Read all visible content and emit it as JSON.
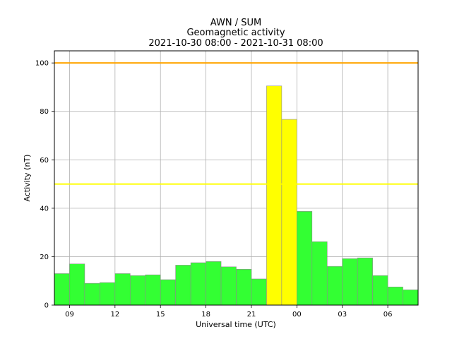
{
  "chart_data": {
    "type": "bar",
    "title_lines": [
      "AWN / SUM",
      "Geomagnetic activity",
      "2021-10-30 08:00 - 2021-10-31 08:00"
    ],
    "xlabel": "Universal time (UTC)",
    "ylabel": "Activity (nT)",
    "x_range_hours": [
      8,
      32
    ],
    "ylim": [
      0,
      105
    ],
    "x_ticks": [
      {
        "hour": 9,
        "label": "09"
      },
      {
        "hour": 12,
        "label": "12"
      },
      {
        "hour": 15,
        "label": "15"
      },
      {
        "hour": 18,
        "label": "18"
      },
      {
        "hour": 21,
        "label": "21"
      },
      {
        "hour": 24,
        "label": "00"
      },
      {
        "hour": 27,
        "label": "03"
      },
      {
        "hour": 30,
        "label": "06"
      }
    ],
    "y_ticks": [
      0,
      20,
      40,
      60,
      80,
      100
    ],
    "grid": true,
    "bars": [
      {
        "start_hour": 8,
        "value": 13.0,
        "color": "#33ff33"
      },
      {
        "start_hour": 9,
        "value": 17.0,
        "color": "#33ff33"
      },
      {
        "start_hour": 10,
        "value": 9.0,
        "color": "#33ff33"
      },
      {
        "start_hour": 11,
        "value": 9.3,
        "color": "#33ff33"
      },
      {
        "start_hour": 12,
        "value": 13.0,
        "color": "#33ff33"
      },
      {
        "start_hour": 13,
        "value": 12.2,
        "color": "#33ff33"
      },
      {
        "start_hour": 14,
        "value": 12.5,
        "color": "#33ff33"
      },
      {
        "start_hour": 15,
        "value": 10.5,
        "color": "#33ff33"
      },
      {
        "start_hour": 16,
        "value": 16.5,
        "color": "#33ff33"
      },
      {
        "start_hour": 17,
        "value": 17.5,
        "color": "#33ff33"
      },
      {
        "start_hour": 18,
        "value": 18.0,
        "color": "#33ff33"
      },
      {
        "start_hour": 19,
        "value": 15.8,
        "color": "#33ff33"
      },
      {
        "start_hour": 20,
        "value": 14.8,
        "color": "#33ff33"
      },
      {
        "start_hour": 21,
        "value": 10.8,
        "color": "#33ff33"
      },
      {
        "start_hour": 22,
        "value": 90.5,
        "color": "#ffff00"
      },
      {
        "start_hour": 23,
        "value": 76.7,
        "color": "#ffff00"
      },
      {
        "start_hour": 24,
        "value": 38.7,
        "color": "#33ff33"
      },
      {
        "start_hour": 25,
        "value": 26.2,
        "color": "#33ff33"
      },
      {
        "start_hour": 26,
        "value": 16.0,
        "color": "#33ff33"
      },
      {
        "start_hour": 27,
        "value": 19.2,
        "color": "#33ff33"
      },
      {
        "start_hour": 28,
        "value": 19.5,
        "color": "#33ff33"
      },
      {
        "start_hour": 29,
        "value": 12.2,
        "color": "#33ff33"
      },
      {
        "start_hour": 30,
        "value": 7.5,
        "color": "#33ff33"
      },
      {
        "start_hour": 31,
        "value": 6.3,
        "color": "#33ff33"
      }
    ],
    "threshold_lines": [
      {
        "value": 100,
        "color": "#ffa500"
      },
      {
        "value": 50,
        "color": "#ffff00"
      }
    ],
    "colors": {
      "quiet": "#33ff33",
      "active": "#ffff00",
      "storm_threshold": "#ffa500",
      "grid": "#b0b0b0",
      "bar_edge": "#8c8c8c"
    }
  }
}
